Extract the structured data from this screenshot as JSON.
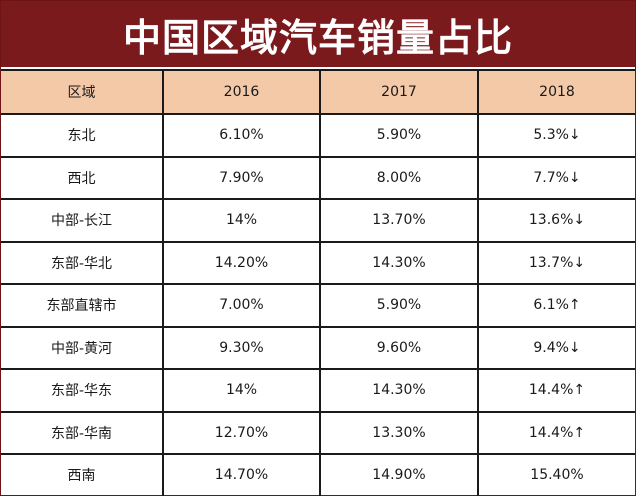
{
  "title": "中国区域汽车销量占比",
  "columns": [
    "区域",
    "2016",
    "2017",
    "2018"
  ],
  "rows": [
    [
      "东北",
      "6.10%",
      "5.90%",
      "5.3%↓"
    ],
    [
      "西北",
      "7.90%",
      "8.00%",
      "7.7%↓"
    ],
    [
      "中部-长江",
      "14%",
      "13.70%",
      "13.6%↓"
    ],
    [
      "东部-华北",
      "14.20%",
      "14.30%",
      "13.7%↓"
    ],
    [
      "东部直辖市",
      "7.00%",
      "5.90%",
      "6.1%↑"
    ],
    [
      "中部-黄河",
      "9.30%",
      "9.60%",
      "9.4%↓"
    ],
    [
      "东部-华东",
      "14%",
      "14.30%",
      "14.4%↑"
    ],
    [
      "东部-华南",
      "12.70%",
      "13.30%",
      "14.4%↑"
    ],
    [
      "西南",
      "14.70%",
      "14.90%",
      "15.40%"
    ]
  ],
  "colors": {
    "title_bg": "#7b1a1d",
    "header_bg": "#f4c9a8"
  }
}
